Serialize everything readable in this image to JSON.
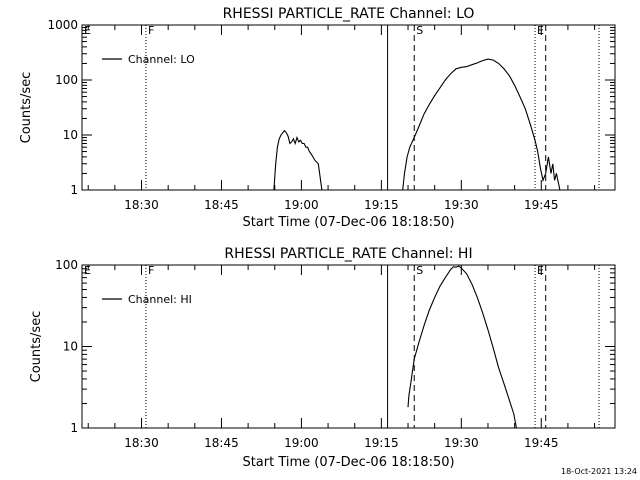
{
  "footer": {
    "timestamp": "18-Oct-2021 13:24"
  },
  "chart_data": [
    {
      "type": "line",
      "title": "RHESSI PARTICLE_RATE Channel: LO",
      "xlabel": "Start Time (07-Dec-06 18:18:50)",
      "ylabel": "Counts/sec",
      "xlim": [
        "18:18:50",
        "19:58:50"
      ],
      "ylim": [
        1,
        1000
      ],
      "yscale": "log",
      "x_ticks": [
        "18:30",
        "18:45",
        "19:00",
        "19:15",
        "19:30",
        "19:45"
      ],
      "y_ticks": [
        "1",
        "10",
        "100",
        "1000"
      ],
      "legend": {
        "entries": [
          "Channel: LO"
        ],
        "placement": "top-left"
      },
      "markers": [
        {
          "label": "E",
          "time": "18:18:50",
          "style": "dotted"
        },
        {
          "label": "F",
          "time": "18:30:50",
          "style": "dotted"
        },
        {
          "label": "",
          "time": "19:16:10",
          "style": "solid"
        },
        {
          "label": "S",
          "time": "19:21:10",
          "style": "dashed"
        },
        {
          "label": "E",
          "time": "19:43:50",
          "style": "dotted"
        },
        {
          "label": "",
          "time": "19:45:50",
          "style": "dashed"
        },
        {
          "label": "",
          "time": "19:55:50",
          "style": "dotted"
        }
      ],
      "series": [
        {
          "name": "Channel: LO",
          "segments": [
            [
              [
                "18:54:50",
                1
              ],
              [
                "18:55:10",
                3
              ],
              [
                "18:55:30",
                6
              ],
              [
                "18:55:50",
                8.5
              ],
              [
                "18:56:10",
                10
              ],
              [
                "18:56:30",
                11
              ],
              [
                "18:56:50",
                12
              ],
              [
                "18:57:10",
                11
              ],
              [
                "18:57:30",
                9.5
              ],
              [
                "18:57:50",
                7
              ],
              [
                "18:58:10",
                7.5
              ],
              [
                "18:58:30",
                8.5
              ],
              [
                "18:58:50",
                7
              ],
              [
                "18:59:10",
                9
              ],
              [
                "18:59:30",
                7.5
              ],
              [
                "18:59:50",
                8
              ],
              [
                "19:00:10",
                7
              ],
              [
                "19:00:30",
                7
              ],
              [
                "19:00:50",
                6
              ],
              [
                "19:01:10",
                6
              ],
              [
                "19:01:30",
                5
              ],
              [
                "19:01:50",
                4.5
              ],
              [
                "19:02:10",
                4
              ],
              [
                "19:02:30",
                3.5
              ],
              [
                "19:03:10",
                3
              ],
              [
                "19:03:50",
                1
              ]
            ],
            [
              [
                "19:19:00",
                1
              ],
              [
                "19:19:20",
                2
              ],
              [
                "19:19:50",
                4
              ],
              [
                "19:20:20",
                6
              ],
              [
                "19:21:10",
                9
              ],
              [
                "19:22:00",
                14
              ],
              [
                "19:23:00",
                24
              ],
              [
                "19:24:00",
                36
              ],
              [
                "19:25:00",
                52
              ],
              [
                "19:26:00",
                72
              ],
              [
                "19:27:00",
                100
              ],
              [
                "19:28:00",
                130
              ],
              [
                "19:29:00",
                160
              ],
              [
                "19:30:00",
                170
              ],
              [
                "19:31:00",
                175
              ],
              [
                "19:32:00",
                190
              ],
              [
                "19:33:00",
                205
              ],
              [
                "19:34:00",
                225
              ],
              [
                "19:35:00",
                240
              ],
              [
                "19:36:00",
                230
              ],
              [
                "19:37:00",
                200
              ],
              [
                "19:38:00",
                160
              ],
              [
                "19:39:00",
                120
              ],
              [
                "19:40:00",
                80
              ],
              [
                "19:41:00",
                50
              ],
              [
                "19:42:00",
                30
              ],
              [
                "19:43:00",
                15
              ],
              [
                "19:43:50",
                8
              ],
              [
                "19:44:20",
                5
              ],
              [
                "19:44:50",
                2.5
              ],
              [
                "19:45:20",
                1.5
              ],
              [
                "19:45:50",
                2
              ],
              [
                "19:46:20",
                4
              ],
              [
                "19:46:50",
                2
              ],
              [
                "19:47:10",
                3
              ],
              [
                "19:47:30",
                1.5
              ],
              [
                "19:47:50",
                2
              ],
              [
                "19:48:30",
                1
              ]
            ]
          ]
        }
      ]
    },
    {
      "type": "line",
      "title": "RHESSI PARTICLE_RATE Channel: HI",
      "xlabel": "Start Time (07-Dec-06 18:18:50)",
      "ylabel": "Counts/sec",
      "xlim": [
        "18:18:50",
        "19:58:50"
      ],
      "ylim": [
        1,
        100
      ],
      "yscale": "log",
      "x_ticks": [
        "18:30",
        "18:45",
        "19:00",
        "19:15",
        "19:30",
        "19:45"
      ],
      "y_ticks": [
        "1",
        "10",
        "100"
      ],
      "legend": {
        "entries": [
          "Channel: HI"
        ],
        "placement": "top-left"
      },
      "markers": [
        {
          "label": "E",
          "time": "18:18:50",
          "style": "dotted"
        },
        {
          "label": "F",
          "time": "18:30:50",
          "style": "dotted"
        },
        {
          "label": "",
          "time": "19:16:10",
          "style": "solid"
        },
        {
          "label": "S",
          "time": "19:21:10",
          "style": "dashed"
        },
        {
          "label": "E",
          "time": "19:43:50",
          "style": "dotted"
        },
        {
          "label": "",
          "time": "19:45:50",
          "style": "dashed"
        },
        {
          "label": "",
          "time": "19:55:50",
          "style": "dotted"
        }
      ],
      "series": [
        {
          "name": "Channel: HI",
          "segments": [
            [
              [
                "19:20:00",
                1.8
              ],
              [
                "19:20:10",
                2.5
              ],
              [
                "19:20:30",
                3.5
              ],
              [
                "19:20:50",
                5
              ],
              [
                "19:21:10",
                7
              ],
              [
                "19:22:00",
                11
              ],
              [
                "19:23:00",
                18
              ],
              [
                "19:24:00",
                28
              ],
              [
                "19:25:00",
                40
              ],
              [
                "19:26:00",
                55
              ],
              [
                "19:27:00",
                70
              ],
              [
                "19:28:00",
                88
              ],
              [
                "19:28:30",
                95
              ],
              [
                "19:29:00",
                94
              ],
              [
                "19:29:30",
                97
              ],
              [
                "19:30:00",
                92
              ],
              [
                "19:31:00",
                78
              ],
              [
                "19:32:00",
                58
              ],
              [
                "19:33:00",
                40
              ],
              [
                "19:34:00",
                26
              ],
              [
                "19:35:00",
                16
              ],
              [
                "19:36:00",
                9.5
              ],
              [
                "19:37:00",
                5.5
              ],
              [
                "19:38:00",
                3.5
              ],
              [
                "19:39:00",
                2.2
              ],
              [
                "19:39:50",
                1.5
              ],
              [
                "19:40:20",
                1
              ]
            ]
          ]
        }
      ]
    }
  ]
}
